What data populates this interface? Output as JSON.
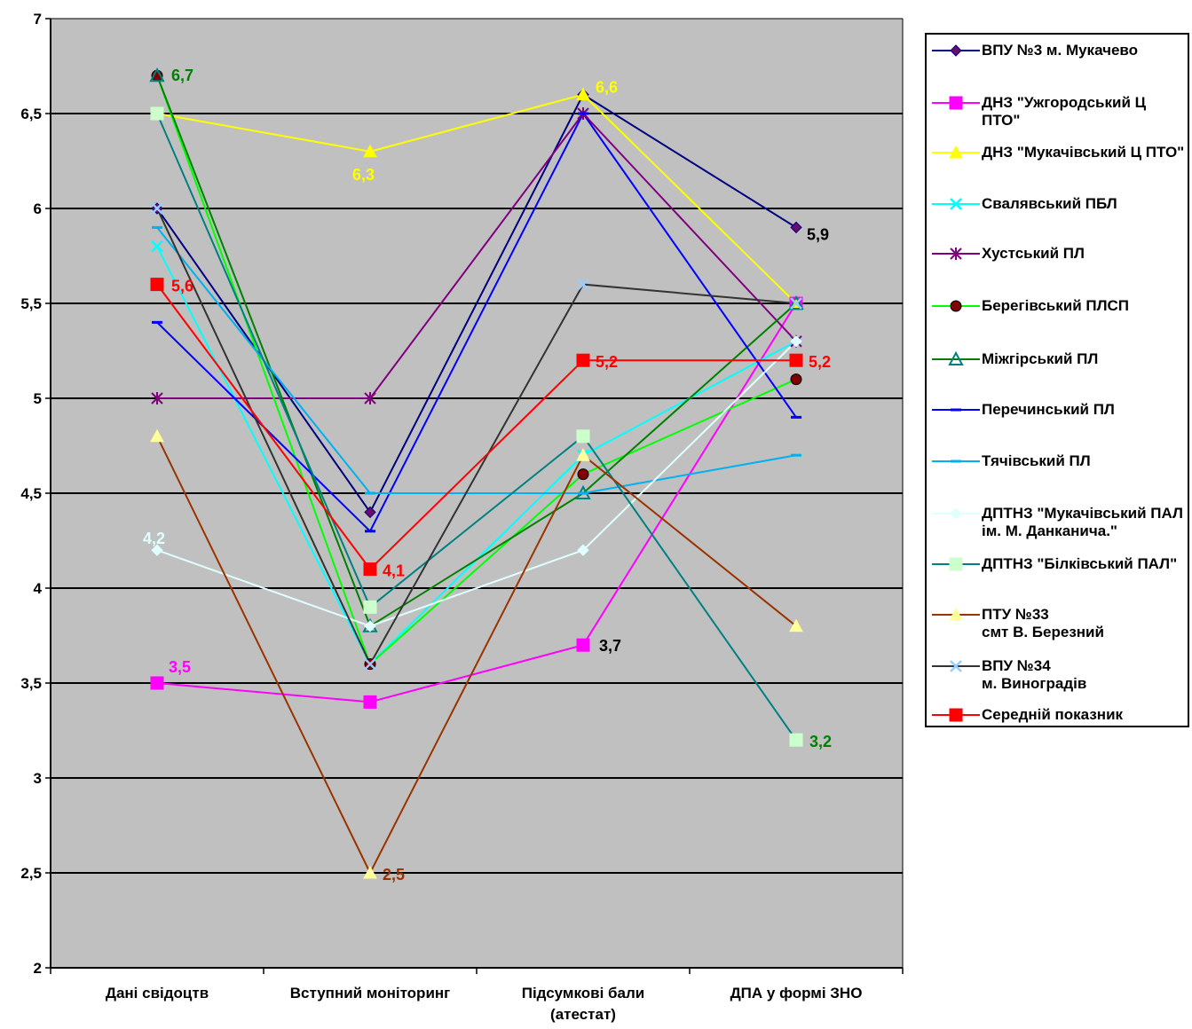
{
  "chart_data": {
    "type": "line",
    "categories": [
      "Дані свідоцтв",
      "Вступний моніторинг",
      "Підсумкові бали\n(атестат)",
      "ДПА у формі ЗНО"
    ],
    "ylim": [
      2,
      7
    ],
    "yticks": [
      "2",
      "2,5",
      "3",
      "3,5",
      "4",
      "4,5",
      "5",
      "5,5",
      "6",
      "6,5",
      "7"
    ],
    "grid": true,
    "legend_position": "right",
    "plot_background": "#C0C0C0",
    "series": [
      {
        "name": "ВПУ №3 м. Мукачево",
        "values": [
          6.0,
          4.4,
          6.6,
          5.9
        ],
        "color": "#000080",
        "marker": "diamond",
        "marker_color": "#6A0D6A"
      },
      {
        "name": "ДНЗ \"Ужгородський Ц ПТО\"",
        "values": [
          3.5,
          3.4,
          3.7,
          5.5
        ],
        "color": "#FF00FF",
        "marker": "square",
        "marker_color": "#FF00FF"
      },
      {
        "name": "ДНЗ \"Мукачівський  Ц ПТО\"",
        "values": [
          6.5,
          6.3,
          6.6,
          5.5
        ],
        "color": "#FFFF00",
        "marker": "triangle",
        "marker_color": "#FFFF00"
      },
      {
        "name": "Свалявський ПБЛ",
        "values": [
          5.8,
          3.6,
          4.7,
          5.3
        ],
        "color": "#00FFFF",
        "marker": "x",
        "marker_color": "#00FFFF"
      },
      {
        "name": "Хустський ПЛ",
        "values": [
          5.0,
          5.0,
          6.5,
          5.3
        ],
        "color": "#800080",
        "marker": "star",
        "marker_color": "#800080"
      },
      {
        "name": "Берегівський ПЛСП",
        "values": [
          6.7,
          3.6,
          4.6,
          5.1
        ],
        "color": "#00FF00",
        "marker": "circle",
        "marker_color": "#800000"
      },
      {
        "name": "Міжгірський ПЛ",
        "values": [
          6.7,
          3.8,
          4.5,
          5.5
        ],
        "color": "#008000",
        "marker": "triangle-open",
        "marker_color": "#008080"
      },
      {
        "name": "Перечинський ПЛ",
        "values": [
          5.4,
          4.3,
          6.5,
          4.9
        ],
        "color": "#0000FF",
        "marker": "dash",
        "marker_color": "#0000FF"
      },
      {
        "name": "Тячівський ПЛ",
        "values": [
          5.9,
          4.5,
          4.5,
          4.7
        ],
        "color": "#00B0F0",
        "marker": "dash",
        "marker_color": "#00B0F0"
      },
      {
        "name": "ДПТНЗ \"Мукачівський ПАЛ ім. М. Данканича.\"",
        "values": [
          4.2,
          3.8,
          4.2,
          5.3
        ],
        "color": "#E0FFFF",
        "marker": "diamond",
        "marker_color": "#E0FFFF"
      },
      {
        "name": "ДПТНЗ \"Білківський ПАЛ\"",
        "values": [
          6.5,
          3.9,
          4.8,
          3.2
        ],
        "color": "#008080",
        "marker": "square",
        "marker_color": "#CCFFCC"
      },
      {
        "name": "ПТУ №33\nсмт В. Березний",
        "values": [
          4.8,
          2.5,
          4.7,
          3.8
        ],
        "color": "#993300",
        "marker": "triangle",
        "marker_color": "#FFFF99"
      },
      {
        "name": "ВПУ №34\nм. Виноградів",
        "values": [
          6.0,
          3.6,
          5.6,
          5.5
        ],
        "color": "#333333",
        "marker": "x",
        "marker_color": "#99CCFF"
      },
      {
        "name": "Середній показник",
        "values": [
          5.6,
          4.1,
          5.2,
          5.2
        ],
        "color": "#FF0000",
        "marker": "square",
        "marker_color": "#FF0000"
      }
    ],
    "data_labels": [
      {
        "series": 5,
        "point": 0,
        "text": "6,7",
        "color": "#008000"
      },
      {
        "series": 13,
        "point": 0,
        "text": "5,6",
        "color": "#FF0000"
      },
      {
        "series": 9,
        "point": 0,
        "text": "4,2",
        "color": "#E0FFFF"
      },
      {
        "series": 1,
        "point": 0,
        "text": "3,5",
        "color": "#FF00FF"
      },
      {
        "series": 2,
        "point": 1,
        "text": "6,3",
        "color": "#FFFF00"
      },
      {
        "series": 13,
        "point": 1,
        "text": "4,1",
        "color": "#FF0000"
      },
      {
        "series": 11,
        "point": 1,
        "text": "2,5",
        "color": "#993300"
      },
      {
        "series": 2,
        "point": 2,
        "text": "6,6",
        "color": "#FFFF00"
      },
      {
        "series": 13,
        "point": 2,
        "text": "5,2",
        "color": "#FF0000"
      },
      {
        "series": 1,
        "point": 2,
        "text": "3,7",
        "color": "#000000"
      },
      {
        "series": 0,
        "point": 3,
        "text": "5,9",
        "color": "#000000"
      },
      {
        "series": 13,
        "point": 3,
        "text": "5,2",
        "color": "#FF0000"
      },
      {
        "series": 10,
        "point": 3,
        "text": "3,2",
        "color": "#008000"
      }
    ]
  }
}
